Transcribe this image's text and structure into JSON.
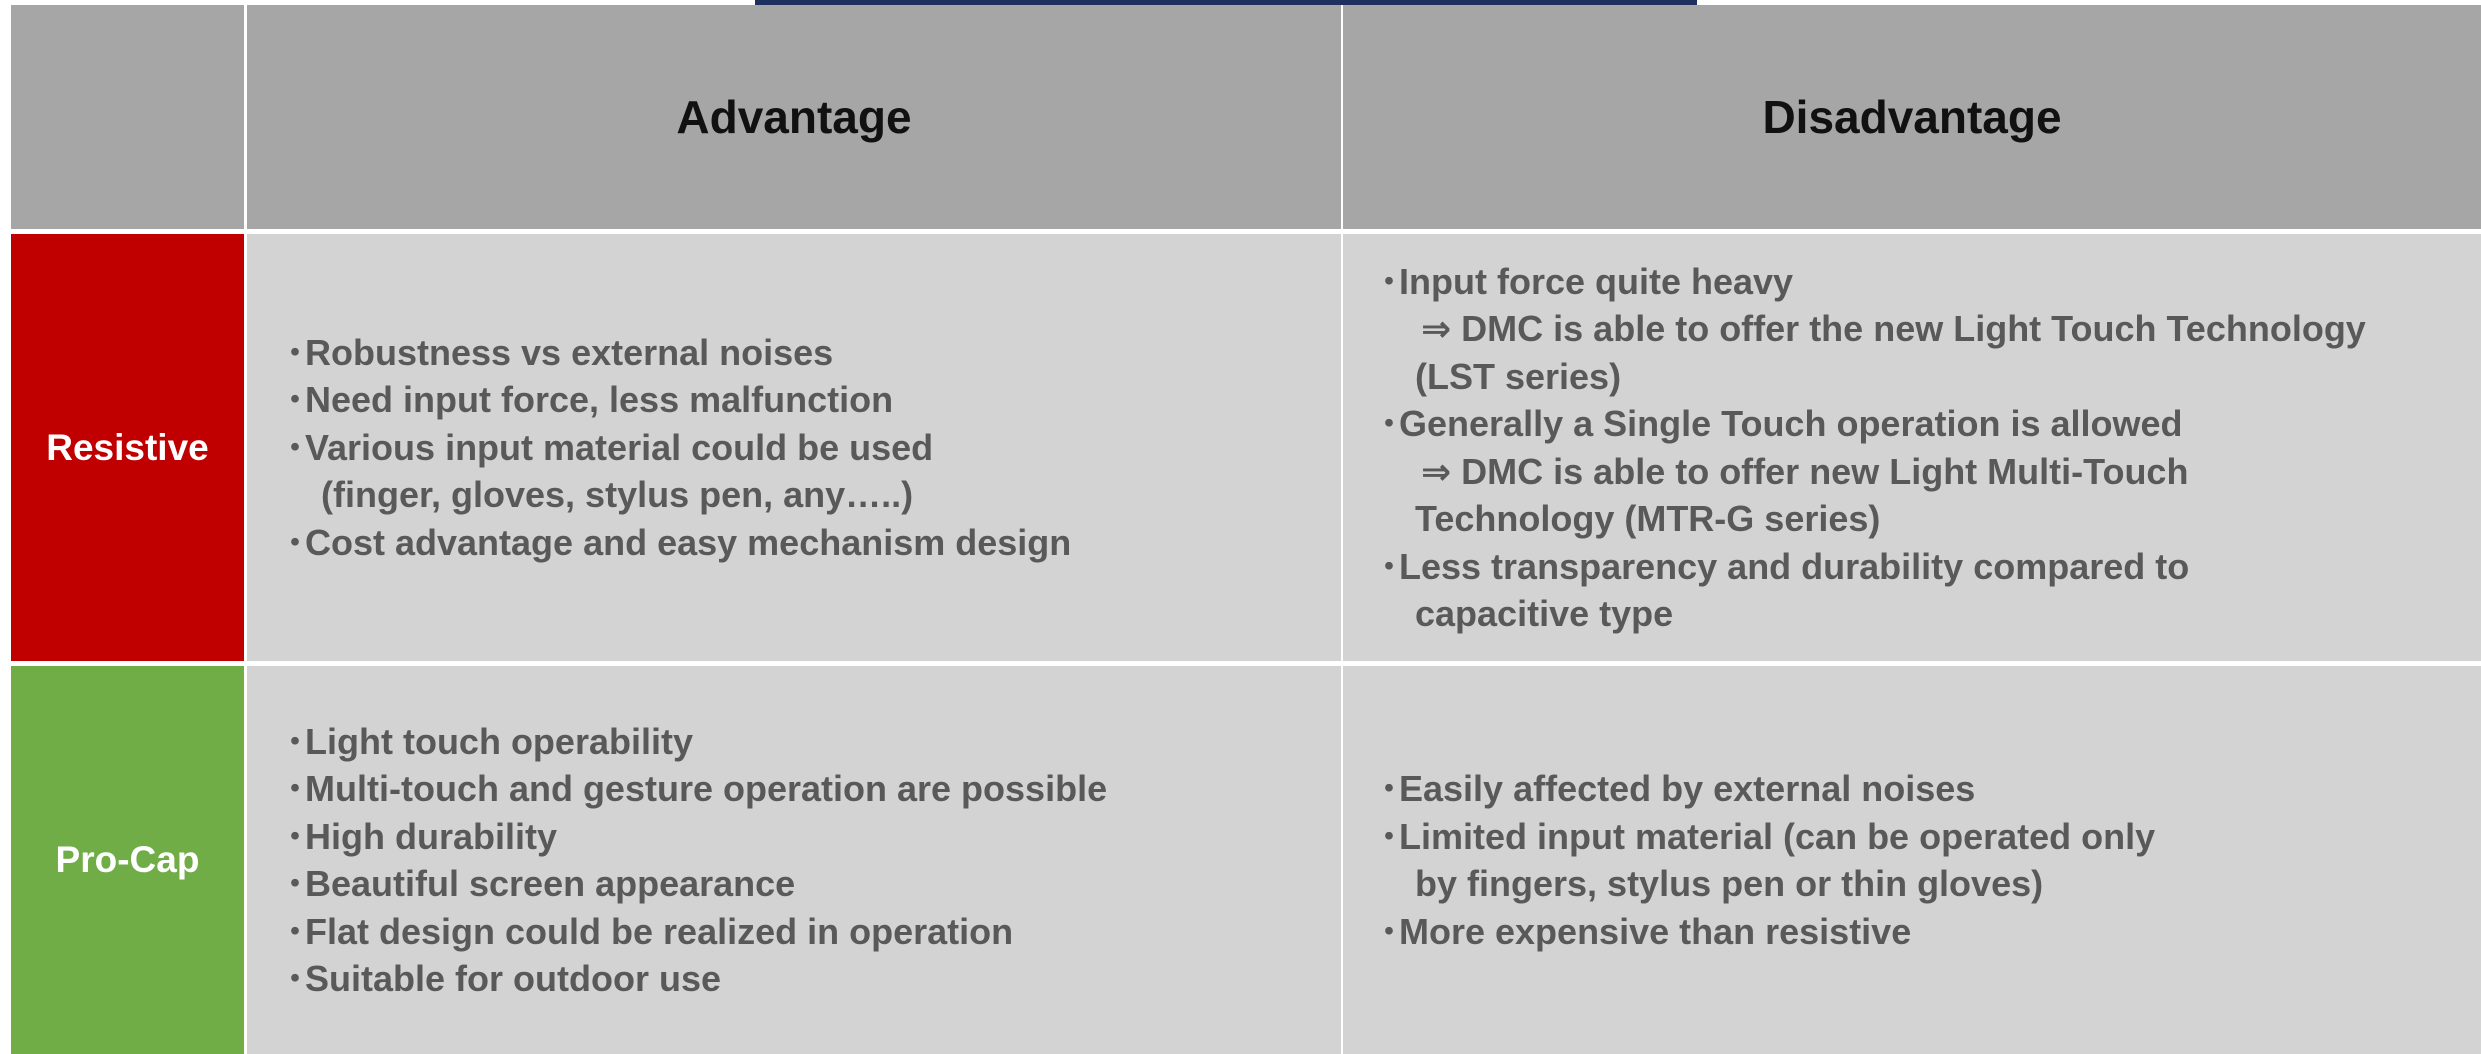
{
  "table": {
    "columns": [
      "Advantage",
      "Disadvantage"
    ],
    "rows": [
      {
        "label": "Resistive",
        "advantages": [
          [
            "Robustness vs external noises"
          ],
          [
            "Need input force, less malfunction"
          ],
          [
            "Various input material could be used",
            "(finger, gloves, stylus pen, any…..)"
          ],
          [
            "Cost advantage and easy mechanism design"
          ]
        ],
        "disadvantages": [
          [
            "Input force quite heavy",
            "⇒ DMC is able to offer the new Light Touch Technology",
            "(LST series)"
          ],
          [
            "Generally a Single Touch operation is allowed",
            "⇒ DMC is able to offer new Light Multi-Touch",
            "Technology (MTR-G series)"
          ],
          [
            "Less transparency and durability compared to",
            "capacitive type"
          ]
        ]
      },
      {
        "label": "Pro-Cap",
        "advantages": [
          [
            "Light touch operability"
          ],
          [
            "Multi-touch and gesture operation are possible"
          ],
          [
            "High durability"
          ],
          [
            "Beautiful screen appearance"
          ],
          [
            "Flat design could be realized in operation"
          ],
          [
            "Suitable for outdoor use"
          ]
        ],
        "disadvantages": [
          [
            "Easily affected by external noises"
          ],
          [
            "Limited input material (can be operated only",
            "by fingers, stylus pen or thin gloves)"
          ],
          [
            "More expensive than resistive"
          ]
        ]
      }
    ]
  }
}
